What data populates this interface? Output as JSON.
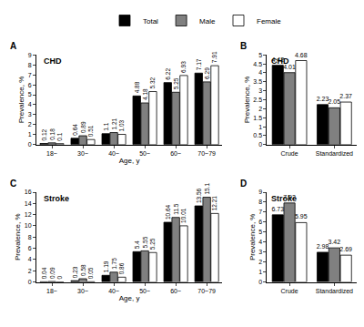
{
  "chart_data": [
    {
      "type": "bar",
      "panel": "A",
      "title": "CHD",
      "x_label": "Age, y",
      "y_label": "Prevalence, %",
      "categories": [
        "18~",
        "30~",
        "40~",
        "50~",
        "60~",
        "70~79"
      ],
      "series": [
        {
          "name": "Total",
          "color": "#000000",
          "values": [
            0.12,
            0.64,
            1.1,
            4.88,
            6.22,
            7.17
          ]
        },
        {
          "name": "Male",
          "color": "#808080",
          "values": [
            0.18,
            0.89,
            1.21,
            4.18,
            5.25,
            6.29
          ]
        },
        {
          "name": "Female",
          "color": "#ffffff",
          "values": [
            0.1,
            0.51,
            1.03,
            5.32,
            6.93,
            7.91
          ]
        }
      ],
      "ylim": [
        0,
        9
      ],
      "yticks": [
        0,
        1,
        2,
        3,
        4,
        5,
        6,
        7,
        8,
        9
      ],
      "data_labels": true,
      "grid": false,
      "legend": "top"
    },
    {
      "type": "bar",
      "panel": "B",
      "title": "CHD",
      "y_label": "Prevalence, %",
      "categories": [
        "Crude",
        "Standardized"
      ],
      "series": [
        {
          "name": "Total",
          "color": "#000000",
          "values": [
            4.42,
            2.23
          ]
        },
        {
          "name": "Male",
          "color": "#808080",
          "values": [
            4.01,
            2.05
          ]
        },
        {
          "name": "Female",
          "color": "#ffffff",
          "values": [
            4.68,
            2.37
          ]
        }
      ],
      "ylim": [
        0,
        5
      ],
      "yticks": [
        0,
        0.5,
        1,
        1.5,
        2,
        2.5,
        3,
        3.5,
        4,
        4.5,
        5
      ],
      "data_labels": true,
      "grid": false
    },
    {
      "type": "bar",
      "panel": "C",
      "title": "Stroke",
      "x_label": "Age, y",
      "y_label": "Prevalence, %",
      "categories": [
        "18~",
        "30~",
        "40~",
        "50~",
        "60~",
        "70~79"
      ],
      "series": [
        {
          "name": "Total",
          "color": "#000000",
          "values": [
            0.04,
            0.23,
            1.19,
            5.4,
            10.64,
            13.56
          ]
        },
        {
          "name": "Male",
          "color": "#808080",
          "values": [
            0.09,
            0.58,
            1.75,
            5.55,
            11.5,
            15.1
          ]
        },
        {
          "name": "Female",
          "color": "#ffffff",
          "values": [
            0,
            0.05,
            0.86,
            5.25,
            10.01,
            12.21
          ]
        }
      ],
      "ylim": [
        0,
        16
      ],
      "yticks": [
        0,
        2,
        4,
        6,
        8,
        10,
        12,
        14,
        16
      ],
      "data_labels": true,
      "grid": false
    },
    {
      "type": "bar",
      "panel": "D",
      "title": "Stroke",
      "y_label": "Prevalence, %",
      "categories": [
        "Crude",
        "Standardized"
      ],
      "series": [
        {
          "name": "Total",
          "color": "#000000",
          "values": [
            6.73,
            2.98
          ]
        },
        {
          "name": "Male",
          "color": "#808080",
          "values": [
            7.92,
            3.42
          ]
        },
        {
          "name": "Female",
          "color": "#ffffff",
          "values": [
            5.95,
            2.69
          ]
        }
      ],
      "ylim": [
        0,
        9
      ],
      "yticks": [
        0,
        1,
        2,
        3,
        4,
        5,
        6,
        7,
        8,
        9
      ],
      "data_labels": true,
      "grid": false
    }
  ]
}
